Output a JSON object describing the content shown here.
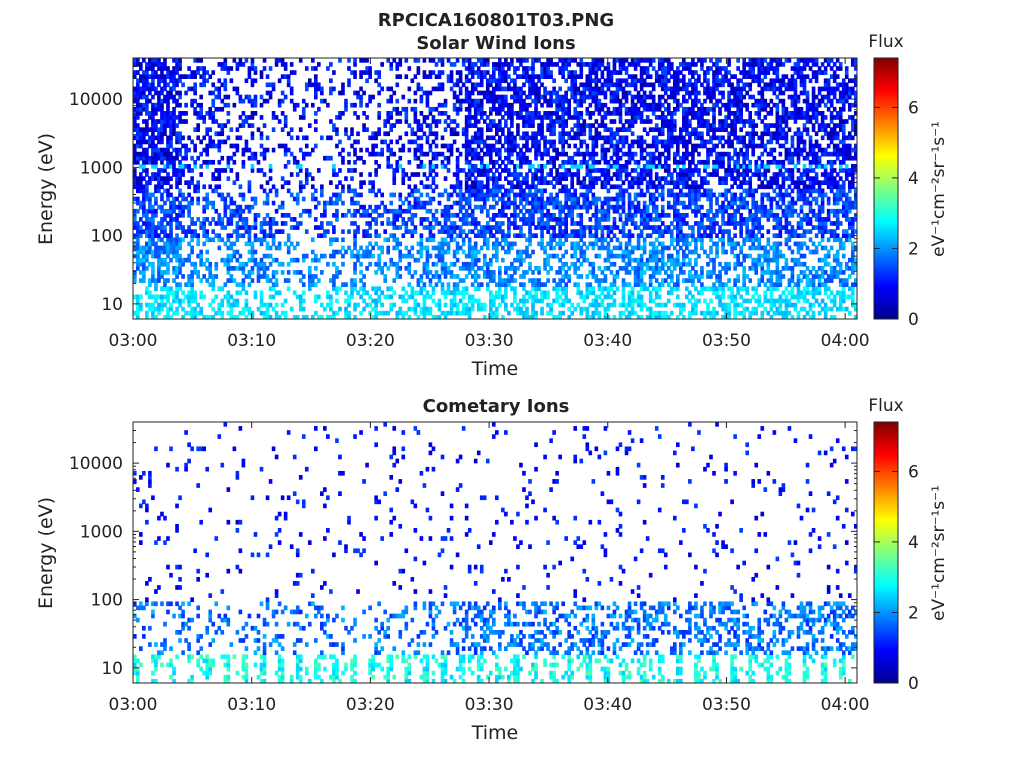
{
  "figure_title": "RPCICA160801T03.PNG",
  "chart_data": [
    {
      "type": "heatmap",
      "title": "Solar Wind Ions",
      "xlabel": "Time",
      "ylabel": "Energy (eV)",
      "x_range": [
        "03:00",
        "04:01"
      ],
      "x_ticks": [
        "03:00",
        "03:10",
        "03:20",
        "03:30",
        "03:40",
        "03:50",
        "04:00"
      ],
      "y_scale": "log",
      "y_range": [
        6,
        40000
      ],
      "y_ticks": [
        "10",
        "100",
        "1000",
        "10000"
      ],
      "colorbar": {
        "title": "Flux",
        "label": "eV⁻¹cm⁻²sr⁻¹s⁻¹",
        "range": [
          0,
          7.4
        ],
        "ticks": [
          "0",
          "2",
          "4",
          "6"
        ],
        "colormap": "jet"
      }
    },
    {
      "type": "heatmap",
      "title": "Cometary Ions",
      "xlabel": "Time",
      "ylabel": "Energy (eV)",
      "x_range": [
        "03:00",
        "04:01"
      ],
      "x_ticks": [
        "03:00",
        "03:10",
        "03:20",
        "03:30",
        "03:40",
        "03:50",
        "04:00"
      ],
      "y_scale": "log",
      "y_range": [
        6,
        40000
      ],
      "y_ticks": [
        "10",
        "100",
        "1000",
        "10000"
      ],
      "colorbar": {
        "title": "Flux",
        "label": "eV⁻¹cm⁻²sr⁻¹s⁻¹",
        "range": [
          0,
          7.4
        ],
        "ticks": [
          "0",
          "2",
          "4",
          "6"
        ],
        "colormap": "jet"
      }
    }
  ]
}
